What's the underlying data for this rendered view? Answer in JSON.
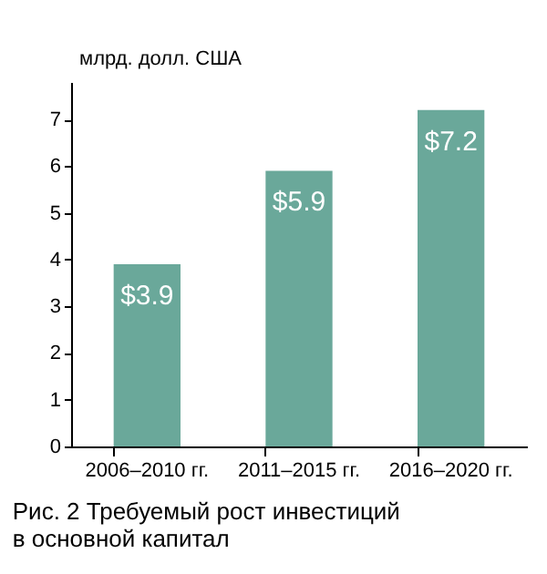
{
  "chart_data": {
    "type": "bar",
    "title": "Рис. 2    Требуемый рост инвестиций в основной капитал",
    "ylabel": "млрд. долл. США",
    "categories": [
      "2006–2010 гг.",
      "2011–2015 гг.",
      "2016–2020 гг."
    ],
    "values": [
      3.9,
      5.9,
      7.2
    ],
    "value_labels": [
      "$3.9",
      "$5.9",
      "$7.2"
    ],
    "color": "#6aa89a",
    "ylim": [
      0,
      7.8
    ],
    "yticks": [
      0,
      1,
      2,
      3,
      4,
      5,
      6,
      7
    ],
    "grid": false
  }
}
